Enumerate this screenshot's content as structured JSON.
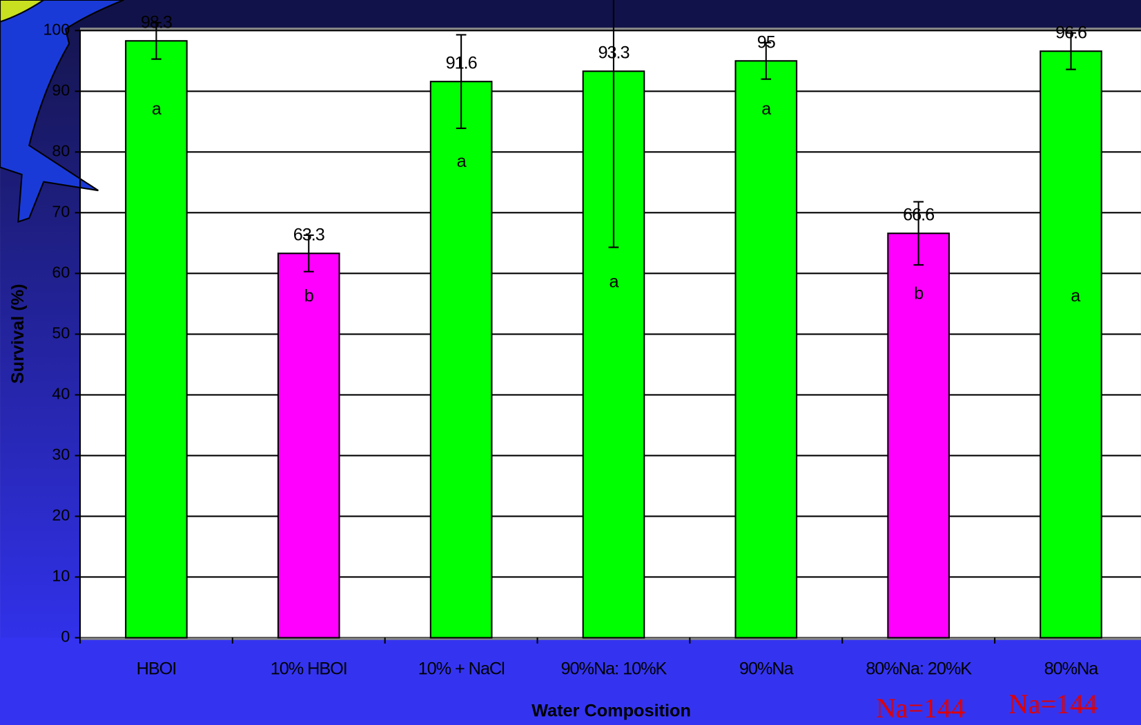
{
  "chart_data": {
    "type": "bar",
    "x_label": "Water Composition",
    "y_label": "Survival (%)",
    "categories": [
      "HBOI",
      "10% HBOI",
      "10% + NaCl",
      "90%Na: 10%K",
      "90%Na",
      "80%Na: 20%K",
      "80%Na"
    ],
    "values": [
      98.3,
      63.3,
      91.6,
      93.3,
      95,
      66.6,
      96.6
    ],
    "errors": [
      3,
      3,
      7.7,
      29,
      3,
      5.2,
      3
    ],
    "group_letters": [
      "a",
      "b",
      "a",
      "a",
      "a",
      "b",
      "a"
    ],
    "colors": [
      "#00ff00",
      "#ff00ff",
      "#00ff00",
      "#00ff00",
      "#00ff00",
      "#ff00ff",
      "#00ff00"
    ],
    "annotations": [
      "Na=144",
      "Na=144"
    ],
    "ylim": [
      0,
      100
    ],
    "yticks": [
      0,
      10,
      20,
      30,
      40,
      50,
      60,
      70,
      80,
      90,
      100
    ],
    "grid": true
  }
}
